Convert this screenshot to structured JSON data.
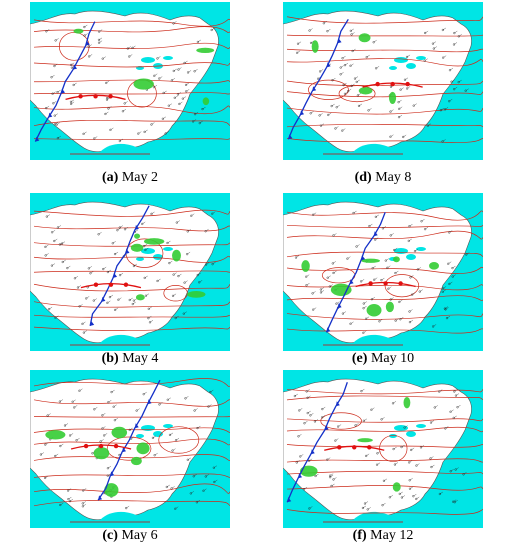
{
  "figure": {
    "panels": [
      {
        "letter": "(a)",
        "date": "May 2"
      },
      {
        "letter": "(d)",
        "date": "May 8"
      },
      {
        "letter": "(b)",
        "date": "May 4"
      },
      {
        "letter": "(e)",
        "date": "May 10"
      },
      {
        "letter": "(c)",
        "date": "May 6"
      },
      {
        "letter": "(f)",
        "date": "May 12"
      }
    ],
    "colors": {
      "ocean": "#00e5e5",
      "land": "#ffffff",
      "isobar": "#cc2a1a",
      "cold_front": "#1430c8",
      "warm_front": "#e01010",
      "precip": "#33cc33",
      "station": "#222222",
      "footer_text": "#cc0000"
    },
    "map_icons": [
      "isobar-lines",
      "cold-front-triangles",
      "warm-front-semicircles",
      "precipitation-shading",
      "station-plots"
    ]
  }
}
